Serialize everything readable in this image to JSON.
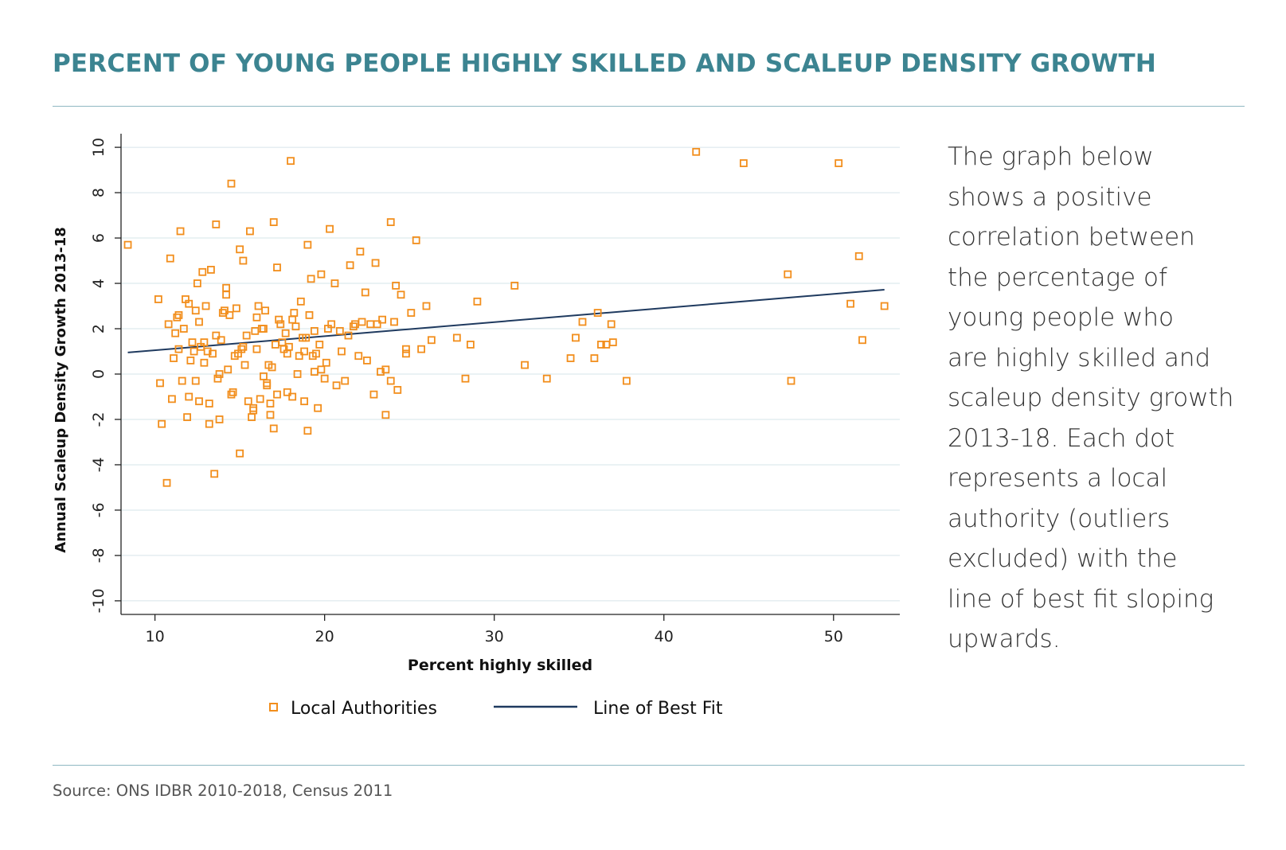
{
  "title": "PERCENT OF YOUNG PEOPLE HIGHLY SKILLED AND SCALEUP DENSITY GROWTH",
  "description_lines": [
    "The graph below",
    "shows a positive",
    "correlation between",
    "the percentage of",
    "young people who",
    "are highly skilled and",
    "scaleup density growth",
    "2013-18. Each dot",
    "represents a local",
    "authority (outliers",
    "excluded) with the",
    "line of best fit sloping",
    "upwards."
  ],
  "source": "Source: ONS IDBR 2010-2018, Census 2011",
  "colors": {
    "title": "#3c8491",
    "points": "#f28e1c",
    "fit_line": "#1f3a5f",
    "grid": "#d6e4ea",
    "rule": "#8fb8c2"
  },
  "chart_data": {
    "type": "scatter",
    "xlabel": "Percent highly skilled",
    "ylabel": "Annual Scaleup Density Growth 2013-18",
    "xlim": [
      8,
      54
    ],
    "ylim": [
      -10.6,
      10.6
    ],
    "x_ticks": [
      10,
      20,
      30,
      40,
      50
    ],
    "y_ticks": [
      -10,
      -8,
      -6,
      -4,
      -2,
      0,
      2,
      4,
      6,
      8,
      10
    ],
    "grid": true,
    "legend_position": "bottom",
    "series": [
      {
        "name": "Local Authorities",
        "marker": "hollow-square",
        "x": [
          8.4,
          10.2,
          10.3,
          10.4,
          10.7,
          10.8,
          11.0,
          10.9,
          11.3,
          11.5,
          11.2,
          11.1,
          11.4,
          11.7,
          11.9,
          12.0,
          12.2,
          12.5,
          12.4,
          12.8,
          12.6,
          12.9,
          13.2,
          13.5,
          13.1,
          13.8,
          14.0,
          13.6,
          14.3,
          14.5,
          14.2,
          14.8,
          15.0,
          15.2,
          15.4,
          15.6,
          15.8,
          16.0,
          16.2,
          16.4,
          16.6,
          16.8,
          17.0,
          17.2,
          17.4,
          17.6,
          17.8,
          18.0,
          18.2,
          18.4,
          18.6,
          18.8,
          19.0,
          19.2,
          19.4,
          19.6,
          19.8,
          20.0,
          20.3,
          20.6,
          20.9,
          21.2,
          21.5,
          21.8,
          22.1,
          22.4,
          22.7,
          23.0,
          23.3,
          23.6,
          23.9,
          24.2,
          24.5,
          24.8,
          25.1,
          25.4,
          25.7,
          26.0,
          26.3,
          27.8,
          28.3,
          28.6,
          29.0,
          31.2,
          31.8,
          33.1,
          34.5,
          34.8,
          35.2,
          35.9,
          36.1,
          36.3,
          36.6,
          36.9,
          37.0,
          37.8,
          41.9,
          44.7,
          47.3,
          47.5,
          50.3,
          51.0,
          51.5,
          51.7,
          53.0,
          14.5,
          15.5,
          17.0,
          18.1,
          19.0,
          20.4,
          22.2,
          23.9,
          15.0,
          13.7,
          11.4,
          11.8,
          12.1,
          12.7,
          13.0,
          13.3,
          13.9,
          14.1,
          14.7,
          15.3,
          15.9,
          16.5,
          17.1,
          17.7,
          18.3,
          18.9,
          19.5,
          20.1,
          21.0,
          21.7,
          22.5,
          23.4,
          24.3,
          12.3,
          12.9,
          13.4,
          14.4,
          15.1,
          16.1,
          16.7,
          17.3,
          17.9,
          18.5,
          19.1,
          19.7,
          20.2,
          21.4,
          22.0,
          23.1,
          13.6,
          15.2,
          16.3,
          16.9,
          17.5,
          18.1,
          18.7,
          19.3,
          24.1,
          24.8,
          23.6,
          22.9,
          16.0,
          14.2,
          12.6,
          11.6,
          16.8,
          19.8,
          20.7,
          15.7,
          18.8,
          13.2,
          14.9,
          17.2,
          16.4,
          15.8,
          14.6,
          12.0,
          12.4,
          13.8,
          16.6,
          17.8,
          19.4
        ],
        "y": [
          5.7,
          3.3,
          -0.4,
          -2.2,
          -4.8,
          2.2,
          -1.1,
          5.1,
          2.5,
          6.3,
          1.8,
          0.7,
          1.1,
          2.0,
          -1.9,
          3.1,
          1.4,
          4.0,
          2.8,
          4.5,
          2.3,
          0.5,
          -2.2,
          -4.4,
          1.0,
          -2.0,
          2.7,
          6.6,
          0.2,
          8.4,
          3.8,
          2.9,
          5.5,
          5.0,
          1.7,
          6.3,
          -1.5,
          2.5,
          -1.1,
          2.0,
          -0.5,
          -1.8,
          6.7,
          4.7,
          2.2,
          1.1,
          0.9,
          9.4,
          2.7,
          0.0,
          3.2,
          1.0,
          5.7,
          4.2,
          0.1,
          -1.5,
          4.4,
          -0.2,
          6.4,
          4.0,
          1.9,
          -0.3,
          4.8,
          2.2,
          5.4,
          3.6,
          2.2,
          4.9,
          0.1,
          -1.8,
          6.7,
          3.9,
          3.5,
          0.9,
          2.7,
          5.9,
          1.1,
          3.0,
          1.5,
          1.6,
          -0.2,
          1.3,
          3.2,
          3.9,
          0.4,
          -0.2,
          0.7,
          1.6,
          2.3,
          0.7,
          2.7,
          1.3,
          1.3,
          2.2,
          1.4,
          -0.3,
          9.8,
          9.3,
          4.4,
          -0.3,
          9.3,
          3.1,
          5.2,
          1.5,
          3.0,
          -0.9,
          -1.2,
          -2.4,
          -1.0,
          -2.5,
          2.2,
          2.3,
          -0.3,
          -3.5,
          -0.2,
          2.6,
          3.3,
          0.6,
          1.2,
          3.0,
          4.6,
          1.5,
          2.8,
          0.8,
          0.4,
          1.9,
          2.8,
          1.3,
          1.8,
          2.1,
          1.6,
          0.9,
          0.5,
          1.0,
          2.1,
          0.6,
          2.4,
          -0.7,
          1.0,
          1.4,
          0.9,
          2.6,
          1.1,
          3.0,
          0.4,
          2.4,
          1.2,
          0.8,
          2.6,
          1.3,
          2.0,
          1.7,
          0.8,
          2.2,
          1.7,
          1.2,
          2.0,
          0.3,
          1.4,
          2.4,
          1.6,
          0.8,
          2.3,
          1.1,
          0.2,
          -0.9,
          1.1,
          3.5,
          -1.2,
          -0.3,
          -1.3,
          0.2,
          -0.5,
          -1.9,
          -1.2,
          -1.3,
          0.9,
          -0.9,
          -0.1,
          -1.6,
          -0.8,
          -1.0,
          -0.3,
          0.0,
          -0.4,
          -0.8,
          1.9
        ]
      },
      {
        "name": "Line of Best Fit",
        "type": "line",
        "x": [
          8.4,
          53.0
        ],
        "y": [
          0.95,
          3.72
        ]
      }
    ]
  }
}
